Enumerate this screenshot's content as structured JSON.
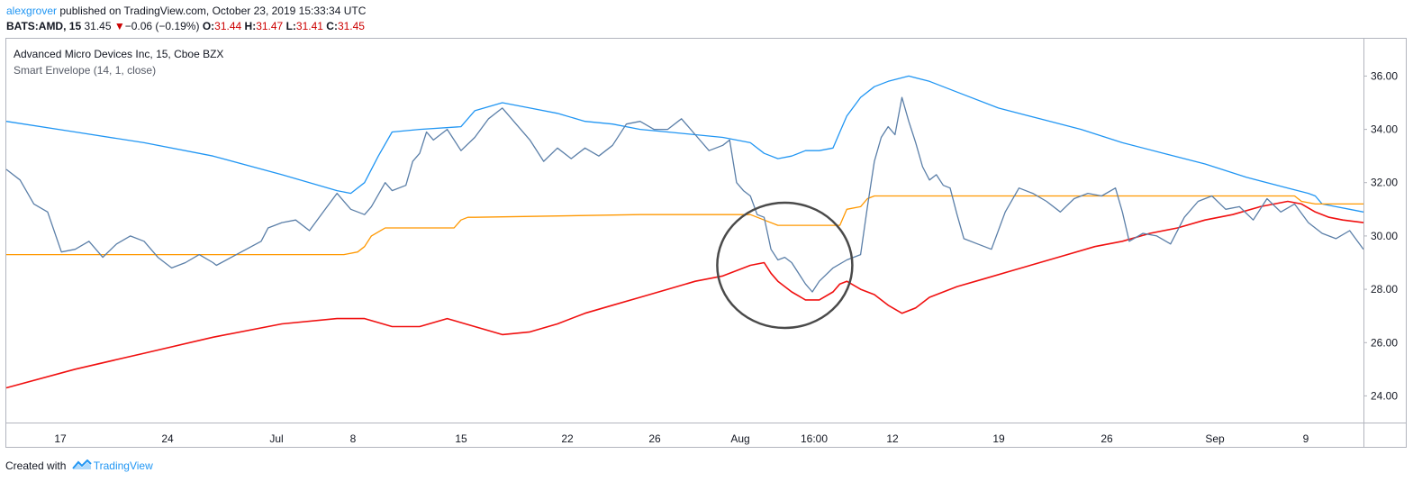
{
  "header": {
    "user": "alexgrover",
    "published_text": "published on TradingView.com, October 23, 2019 15:33:34 UTC",
    "symbol": "BATS:AMD, 15",
    "last": "31.45",
    "change_arrow": "▼",
    "change": "−0.06 (−0.19%)",
    "o_label": "O:",
    "o_value": "31.44",
    "h_label": "H:",
    "h_value": "31.47",
    "l_label": "L:",
    "l_value": "31.41",
    "c_label": "C:",
    "c_value": "31.45"
  },
  "legend": {
    "title": "Advanced Micro Devices Inc, 15, Cboe BZX",
    "indicator": "Smart Envelope (14, 1, close)"
  },
  "footer": {
    "created_with": "Created with",
    "brand": "TradingView",
    "logo_icon": "tradingview-logo-icon"
  },
  "colors": {
    "price": "#5b7fa8",
    "upper": "#2196f3",
    "middle": "#ff9800",
    "lower": "#f01010",
    "annotation": "#4a4a4a"
  },
  "chart_data": {
    "type": "line",
    "title": "Advanced Micro Devices Inc, 15, Cboe BZX",
    "ylim": [
      23,
      37.4
    ],
    "y_ticks": [
      "24.00",
      "26.00",
      "28.00",
      "30.00",
      "32.00",
      "34.00",
      "36.00"
    ],
    "x_ticks": [
      "17",
      "24",
      "Jul",
      "8",
      "15",
      "22",
      "26",
      "Aug",
      "16:00",
      "12",
      "19",
      "26",
      "Sep",
      "9"
    ],
    "grid": false,
    "annotation": "circle around the price crossing below the middle line near Aug",
    "series": [
      {
        "name": "",
        "role": "price",
        "points": [
          [
            0,
            32.5
          ],
          [
            2,
            32.1
          ],
          [
            4,
            31.2
          ],
          [
            6,
            30.9
          ],
          [
            8,
            29.4
          ],
          [
            10,
            29.5
          ],
          [
            12,
            29.8
          ],
          [
            14,
            29.2
          ],
          [
            16,
            29.7
          ],
          [
            18,
            30.0
          ],
          [
            20,
            29.8
          ],
          [
            22,
            29.2
          ],
          [
            24,
            28.8
          ],
          [
            26,
            29.0
          ],
          [
            28,
            29.3
          ],
          [
            30,
            29.0
          ],
          [
            30.5,
            28.9
          ],
          [
            37,
            29.8
          ],
          [
            38,
            30.3
          ],
          [
            40,
            30.5
          ],
          [
            42,
            30.6
          ],
          [
            44,
            30.2
          ],
          [
            46,
            30.9
          ],
          [
            48,
            31.6
          ],
          [
            50,
            31.0
          ],
          [
            52,
            30.8
          ],
          [
            53,
            31.1
          ],
          [
            55,
            32.0
          ],
          [
            56,
            31.7
          ],
          [
            58,
            31.9
          ],
          [
            59,
            32.8
          ],
          [
            60,
            33.1
          ],
          [
            61,
            33.9
          ],
          [
            62,
            33.6
          ],
          [
            64,
            34.0
          ],
          [
            66,
            33.2
          ],
          [
            68,
            33.7
          ],
          [
            70,
            34.4
          ],
          [
            72,
            34.8
          ],
          [
            74,
            34.2
          ],
          [
            76,
            33.6
          ],
          [
            78,
            32.8
          ],
          [
            80,
            33.3
          ],
          [
            82,
            32.9
          ],
          [
            84,
            33.3
          ],
          [
            86,
            33.0
          ],
          [
            88,
            33.4
          ],
          [
            90,
            34.2
          ],
          [
            92,
            34.3
          ],
          [
            94,
            34.0
          ],
          [
            96,
            34.0
          ],
          [
            98,
            34.4
          ],
          [
            100,
            33.8
          ],
          [
            102,
            33.2
          ],
          [
            104,
            33.4
          ],
          [
            105,
            33.6
          ],
          [
            106,
            32.0
          ],
          [
            107,
            31.7
          ],
          [
            108,
            31.5
          ],
          [
            109,
            30.8
          ],
          [
            110,
            30.7
          ],
          [
            111,
            29.5
          ],
          [
            112,
            29.1
          ],
          [
            113,
            29.2
          ],
          [
            114,
            29.0
          ],
          [
            116,
            28.2
          ],
          [
            117,
            27.9
          ],
          [
            118,
            28.3
          ],
          [
            120,
            28.8
          ],
          [
            122,
            29.1
          ],
          [
            124,
            29.3
          ],
          [
            125,
            31.1
          ],
          [
            126,
            32.8
          ],
          [
            127,
            33.7
          ],
          [
            128,
            34.1
          ],
          [
            129,
            33.8
          ],
          [
            130,
            35.2
          ],
          [
            131,
            34.3
          ],
          [
            132,
            33.5
          ],
          [
            133,
            32.6
          ],
          [
            134,
            32.1
          ],
          [
            135,
            32.3
          ],
          [
            136,
            31.9
          ],
          [
            137,
            31.8
          ],
          [
            138,
            30.8
          ],
          [
            139,
            29.9
          ],
          [
            141,
            29.7
          ],
          [
            143,
            29.5
          ],
          [
            145,
            30.9
          ],
          [
            147,
            31.8
          ],
          [
            149,
            31.6
          ],
          [
            151,
            31.3
          ],
          [
            153,
            30.9
          ],
          [
            155,
            31.4
          ],
          [
            157,
            31.6
          ],
          [
            159,
            31.5
          ],
          [
            161,
            31.8
          ],
          [
            162,
            30.9
          ],
          [
            163,
            29.8
          ],
          [
            165,
            30.1
          ],
          [
            167,
            30.0
          ],
          [
            169,
            29.7
          ],
          [
            171,
            30.7
          ],
          [
            173,
            31.3
          ],
          [
            175,
            31.5
          ],
          [
            177,
            31.0
          ],
          [
            179,
            31.1
          ],
          [
            181,
            30.6
          ],
          [
            183,
            31.4
          ],
          [
            185,
            30.9
          ],
          [
            187,
            31.2
          ],
          [
            189,
            30.5
          ],
          [
            191,
            30.1
          ],
          [
            193,
            29.9
          ],
          [
            195,
            30.2
          ],
          [
            197,
            29.5
          ]
        ]
      },
      {
        "name": "",
        "role": "upper",
        "points": [
          [
            0,
            34.3
          ],
          [
            10,
            33.9
          ],
          [
            20,
            33.5
          ],
          [
            30,
            33.0
          ],
          [
            40,
            32.3
          ],
          [
            48,
            31.7
          ],
          [
            50,
            31.6
          ],
          [
            52,
            32.0
          ],
          [
            54,
            33.0
          ],
          [
            56,
            33.9
          ],
          [
            60,
            34.0
          ],
          [
            66,
            34.1
          ],
          [
            68,
            34.7
          ],
          [
            72,
            35.0
          ],
          [
            76,
            34.8
          ],
          [
            80,
            34.6
          ],
          [
            84,
            34.3
          ],
          [
            88,
            34.2
          ],
          [
            92,
            34.0
          ],
          [
            96,
            33.9
          ],
          [
            100,
            33.8
          ],
          [
            104,
            33.7
          ],
          [
            108,
            33.5
          ],
          [
            110,
            33.1
          ],
          [
            112,
            32.9
          ],
          [
            114,
            33.0
          ],
          [
            116,
            33.2
          ],
          [
            118,
            33.2
          ],
          [
            120,
            33.3
          ],
          [
            121,
            33.9
          ],
          [
            122,
            34.5
          ],
          [
            124,
            35.2
          ],
          [
            126,
            35.6
          ],
          [
            128,
            35.8
          ],
          [
            131,
            36.0
          ],
          [
            134,
            35.8
          ],
          [
            138,
            35.4
          ],
          [
            144,
            34.8
          ],
          [
            150,
            34.4
          ],
          [
            156,
            34.0
          ],
          [
            162,
            33.5
          ],
          [
            168,
            33.1
          ],
          [
            174,
            32.7
          ],
          [
            180,
            32.2
          ],
          [
            186,
            31.8
          ],
          [
            189,
            31.6
          ],
          [
            190,
            31.5
          ],
          [
            191,
            31.2
          ],
          [
            193,
            31.1
          ],
          [
            195,
            31.0
          ],
          [
            197,
            30.9
          ]
        ]
      },
      {
        "name": "",
        "role": "middle",
        "points": [
          [
            0,
            29.3
          ],
          [
            25,
            29.3
          ],
          [
            49,
            29.3
          ],
          [
            51,
            29.4
          ],
          [
            52,
            29.6
          ],
          [
            53,
            30.0
          ],
          [
            55,
            30.3
          ],
          [
            56,
            30.3
          ],
          [
            65,
            30.3
          ],
          [
            66,
            30.6
          ],
          [
            67,
            30.7
          ],
          [
            68,
            30.7
          ],
          [
            92,
            30.8
          ],
          [
            107,
            30.8
          ],
          [
            108,
            30.8
          ],
          [
            110,
            30.6
          ],
          [
            112,
            30.4
          ],
          [
            115,
            30.4
          ],
          [
            121,
            30.4
          ],
          [
            122,
            31.0
          ],
          [
            124,
            31.1
          ],
          [
            125,
            31.4
          ],
          [
            126,
            31.5
          ],
          [
            186,
            31.5
          ],
          [
            187,
            31.5
          ],
          [
            188,
            31.3
          ],
          [
            190,
            31.2
          ],
          [
            197,
            31.2
          ]
        ]
      },
      {
        "name": "",
        "role": "lower",
        "points": [
          [
            0,
            24.3
          ],
          [
            10,
            25.0
          ],
          [
            20,
            25.6
          ],
          [
            30,
            26.2
          ],
          [
            40,
            26.7
          ],
          [
            48,
            26.9
          ],
          [
            52,
            26.9
          ],
          [
            56,
            26.6
          ],
          [
            60,
            26.6
          ],
          [
            64,
            26.9
          ],
          [
            68,
            26.6
          ],
          [
            72,
            26.3
          ],
          [
            76,
            26.4
          ],
          [
            80,
            26.7
          ],
          [
            84,
            27.1
          ],
          [
            88,
            27.4
          ],
          [
            92,
            27.7
          ],
          [
            96,
            28.0
          ],
          [
            100,
            28.3
          ],
          [
            104,
            28.5
          ],
          [
            108,
            28.9
          ],
          [
            110,
            29.0
          ],
          [
            111,
            28.6
          ],
          [
            112,
            28.3
          ],
          [
            114,
            27.9
          ],
          [
            116,
            27.6
          ],
          [
            118,
            27.6
          ],
          [
            120,
            27.9
          ],
          [
            121,
            28.2
          ],
          [
            122,
            28.3
          ],
          [
            124,
            28.0
          ],
          [
            126,
            27.8
          ],
          [
            128,
            27.4
          ],
          [
            130,
            27.1
          ],
          [
            132,
            27.3
          ],
          [
            134,
            27.7
          ],
          [
            138,
            28.1
          ],
          [
            142,
            28.4
          ],
          [
            146,
            28.7
          ],
          [
            150,
            29.0
          ],
          [
            154,
            29.3
          ],
          [
            158,
            29.6
          ],
          [
            162,
            29.8
          ],
          [
            166,
            30.1
          ],
          [
            170,
            30.3
          ],
          [
            174,
            30.6
          ],
          [
            178,
            30.8
          ],
          [
            182,
            31.1
          ],
          [
            186,
            31.3
          ],
          [
            188,
            31.2
          ],
          [
            190,
            30.9
          ],
          [
            192,
            30.7
          ],
          [
            194,
            30.6
          ],
          [
            197,
            30.5
          ]
        ]
      }
    ]
  }
}
